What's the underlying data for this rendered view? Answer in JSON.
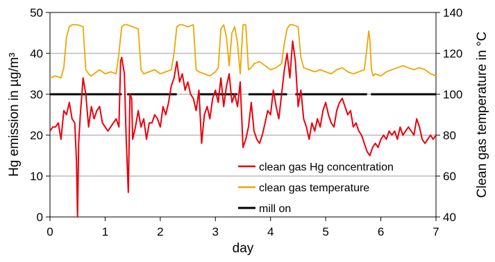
{
  "chart_data": {
    "type": "line",
    "xlabel": "day",
    "ylabel_left": "Hg emission in µg/m³",
    "ylabel_right": "Clean gas temperature in °C",
    "xlim": [
      0,
      7
    ],
    "ylim_left": [
      0,
      50
    ],
    "ylim_right": [
      40,
      140
    ],
    "x_ticks": [
      "0",
      "1",
      "2",
      "3",
      "4",
      "5",
      "6",
      "7"
    ],
    "y_ticks_left": [
      "0",
      "10",
      "20",
      "30",
      "40",
      "50"
    ],
    "y_ticks_right": [
      "40",
      "60",
      "80",
      "100",
      "120",
      "140"
    ],
    "grid": "horizontal",
    "legend_position": "lower-middle",
    "series": [
      {
        "name": "clean gas Hg concentration",
        "axis": "left",
        "color": "#e8000b",
        "x": [
          0.0,
          0.05,
          0.1,
          0.15,
          0.2,
          0.25,
          0.3,
          0.35,
          0.4,
          0.45,
          0.48,
          0.5,
          0.52,
          0.55,
          0.6,
          0.65,
          0.7,
          0.75,
          0.8,
          0.85,
          0.9,
          0.95,
          1.0,
          1.05,
          1.1,
          1.15,
          1.2,
          1.25,
          1.28,
          1.3,
          1.35,
          1.38,
          1.42,
          1.45,
          1.48,
          1.5,
          1.55,
          1.6,
          1.65,
          1.7,
          1.75,
          1.8,
          1.85,
          1.9,
          1.95,
          2.0,
          2.05,
          2.1,
          2.15,
          2.2,
          2.25,
          2.3,
          2.35,
          2.4,
          2.45,
          2.5,
          2.55,
          2.6,
          2.65,
          2.7,
          2.75,
          2.8,
          2.85,
          2.9,
          2.95,
          3.0,
          3.05,
          3.1,
          3.15,
          3.2,
          3.25,
          3.3,
          3.35,
          3.4,
          3.45,
          3.5,
          3.55,
          3.6,
          3.65,
          3.7,
          3.75,
          3.8,
          3.85,
          3.9,
          3.95,
          4.0,
          4.05,
          4.1,
          4.15,
          4.2,
          4.25,
          4.3,
          4.35,
          4.4,
          4.45,
          4.5,
          4.55,
          4.6,
          4.65,
          4.7,
          4.75,
          4.8,
          4.85,
          4.9,
          4.95,
          5.0,
          5.05,
          5.1,
          5.15,
          5.2,
          5.25,
          5.3,
          5.35,
          5.4,
          5.45,
          5.5,
          5.55,
          5.6,
          5.65,
          5.7,
          5.75,
          5.8,
          5.85,
          5.9,
          5.95,
          6.0,
          6.05,
          6.1,
          6.15,
          6.2,
          6.25,
          6.3,
          6.35,
          6.4,
          6.45,
          6.5,
          6.55,
          6.6,
          6.65,
          6.7,
          6.75,
          6.8,
          6.85,
          6.9,
          6.95,
          7.0
        ],
        "values": [
          21,
          22,
          22,
          23,
          19,
          26,
          25,
          28,
          24,
          23,
          14,
          0,
          18,
          25,
          34,
          30,
          22,
          27,
          24,
          26,
          27,
          23,
          22,
          21,
          22,
          23,
          24,
          22,
          38,
          39,
          35,
          20,
          6,
          30,
          29,
          19,
          22,
          26,
          22,
          24,
          19,
          23,
          23,
          25,
          24,
          22,
          27,
          25,
          28,
          32,
          34,
          38,
          33,
          35,
          31,
          33,
          30,
          29,
          26,
          31,
          18,
          25,
          27,
          24,
          29,
          31,
          28,
          34,
          27,
          32,
          35,
          28,
          30,
          27,
          33,
          17,
          19,
          22,
          28,
          21,
          19,
          18,
          20,
          23,
          26,
          25,
          31,
          27,
          24,
          30,
          36,
          40,
          34,
          43,
          38,
          27,
          31,
          24,
          22,
          19,
          23,
          21,
          24,
          22,
          26,
          28,
          25,
          23,
          22,
          26,
          28,
          29,
          27,
          25,
          26,
          22,
          23,
          21,
          20,
          18,
          16,
          15,
          17,
          18,
          17,
          19,
          20,
          19,
          21,
          20,
          21,
          19,
          22,
          20,
          21,
          22,
          21,
          20,
          24,
          22,
          19,
          18,
          19,
          20,
          19,
          20
        ]
      },
      {
        "name": "clean gas temperature",
        "axis": "right",
        "color": "#f0a500",
        "x": [
          0.0,
          0.1,
          0.2,
          0.25,
          0.3,
          0.35,
          0.4,
          0.5,
          0.6,
          0.65,
          0.7,
          0.75,
          0.8,
          0.9,
          1.0,
          1.1,
          1.2,
          1.25,
          1.3,
          1.35,
          1.4,
          1.5,
          1.6,
          1.65,
          1.7,
          1.8,
          1.9,
          2.0,
          2.1,
          2.2,
          2.25,
          2.3,
          2.35,
          2.4,
          2.5,
          2.6,
          2.65,
          2.7,
          2.8,
          2.9,
          3.0,
          3.05,
          3.1,
          3.15,
          3.2,
          3.25,
          3.3,
          3.35,
          3.4,
          3.45,
          3.5,
          3.55,
          3.6,
          3.65,
          3.7,
          3.8,
          3.9,
          4.0,
          4.1,
          4.2,
          4.25,
          4.3,
          4.35,
          4.4,
          4.5,
          4.55,
          4.6,
          4.7,
          4.8,
          4.9,
          5.0,
          5.1,
          5.2,
          5.3,
          5.4,
          5.5,
          5.6,
          5.7,
          5.75,
          5.78,
          5.8,
          5.83,
          5.86,
          5.9,
          6.0,
          6.1,
          6.2,
          6.3,
          6.4,
          6.5,
          6.6,
          6.7,
          6.8,
          6.9,
          7.0
        ],
        "values": [
          108,
          109,
          108,
          113,
          128,
          133,
          134,
          134,
          133,
          112,
          110,
          109,
          110,
          112,
          110,
          111,
          110,
          120,
          133,
          134,
          134,
          133,
          132,
          112,
          110,
          111,
          112,
          110,
          111,
          112,
          120,
          133,
          134,
          134,
          133,
          134,
          112,
          111,
          110,
          109,
          111,
          113,
          132,
          134,
          128,
          114,
          130,
          133,
          125,
          110,
          134,
          134,
          112,
          113,
          115,
          116,
          114,
          112,
          113,
          115,
          125,
          132,
          134,
          134,
          133,
          118,
          113,
          112,
          111,
          112,
          111,
          110,
          112,
          113,
          111,
          110,
          111,
          112,
          123,
          131,
          127,
          112,
          109,
          110,
          109,
          111,
          112,
          113,
          114,
          113,
          112,
          113,
          112,
          110,
          109
        ]
      },
      {
        "name": "mill on",
        "axis": "left",
        "color": "#000000",
        "segments": [
          [
            0.0,
            1.3
          ],
          [
            1.4,
            2.3
          ],
          [
            2.7,
            3.4
          ],
          [
            3.6,
            4.3
          ],
          [
            4.45,
            5.75
          ],
          [
            5.82,
            7.0
          ]
        ],
        "level": 30
      }
    ]
  }
}
